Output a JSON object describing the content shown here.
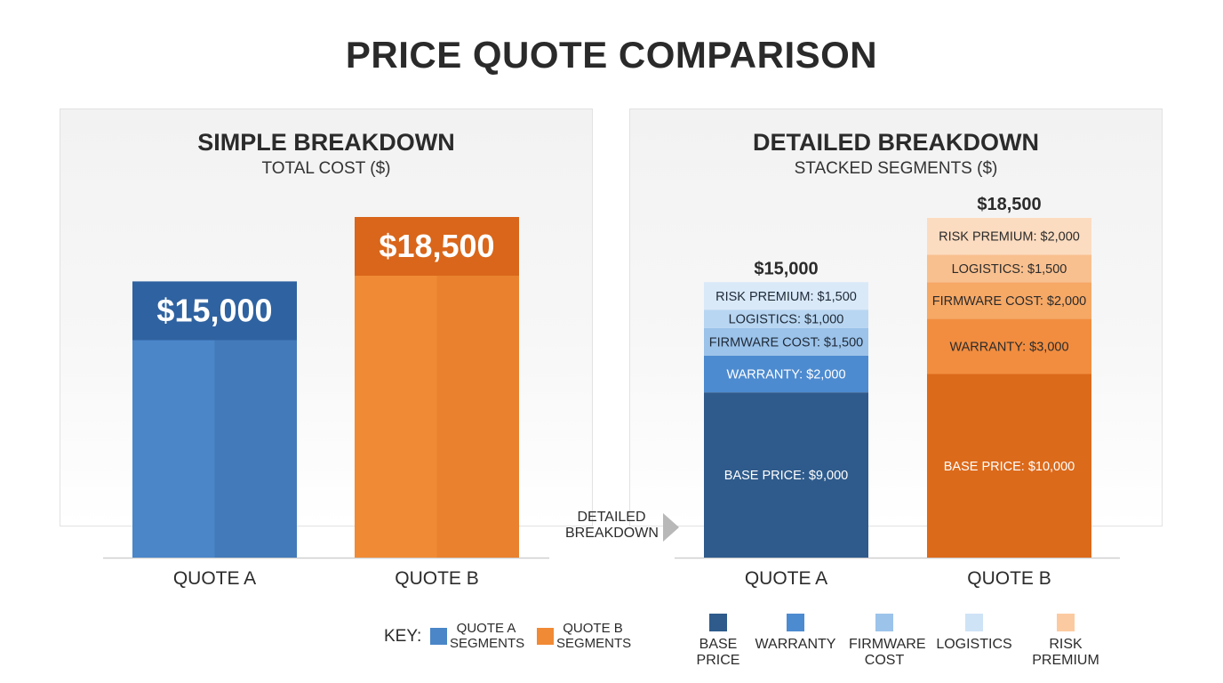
{
  "title": "PRICE QUOTE COMPARISON",
  "colors": {
    "quote_a": "#4a86c8",
    "quote_a_top": "#2f62a0",
    "quote_b": "#f08a35",
    "quote_b_top": "#d9661a",
    "base_a": "#2f5b8c",
    "base_b": "#dc6a1b"
  },
  "connector_label": "DETAILED BREAKDOWN",
  "key": {
    "label": "KEY:",
    "quote_a": "QUOTE A SEGMENTS",
    "quote_b": "QUOTE B SEGMENTS"
  },
  "segment_legend": [
    {
      "label": "BASE PRICE",
      "color": "#2f5b8c"
    },
    {
      "label": "WARRANTY",
      "color": "#4d8bd0"
    },
    {
      "label": "FIRMWARE COST",
      "color": "#9cc3ea"
    },
    {
      "label": "LOGISTICS",
      "color": "#cfe3f6"
    },
    {
      "label": "RISK PREMIUM",
      "color": "#fbcaa1"
    }
  ],
  "chart_data": [
    {
      "type": "bar",
      "title": "SIMPLE BREAKDOWN",
      "subtitle": "TOTAL COST ($)",
      "categories": [
        "QUOTE A",
        "QUOTE B"
      ],
      "values": [
        15000,
        18500
      ],
      "value_labels": [
        "$15,000",
        "$18,500"
      ],
      "ylim": [
        0,
        20000
      ],
      "grid": false
    },
    {
      "type": "bar",
      "stacked": true,
      "title": "DETAILED BREAKDOWN",
      "subtitle": "STACKED SEGMENTS ($)",
      "categories": [
        "QUOTE A",
        "QUOTE B"
      ],
      "totals": [
        15000,
        18500
      ],
      "total_labels": [
        "$15,000",
        "$18,500"
      ],
      "ylim": [
        0,
        20000
      ],
      "grid": false,
      "series": [
        {
          "name": "BASE PRICE",
          "values": [
            9000,
            10000
          ],
          "labels": [
            "BASE PRICE: $9,000",
            "BASE PRICE: $10,000"
          ],
          "colors": [
            "#2f5b8c",
            "#dc6a1b"
          ],
          "text_colors": [
            "#ffffff",
            "#ffffff"
          ]
        },
        {
          "name": "WARRANTY",
          "values": [
            2000,
            3000
          ],
          "labels": [
            "WARRANTY: $2,000",
            "WARRANTY: $3,000"
          ],
          "colors": [
            "#4d8bd0",
            "#f28d3f"
          ],
          "text_colors": [
            "#ffffff",
            "#2b2b2b"
          ]
        },
        {
          "name": "FIRMWARE COST",
          "values": [
            1500,
            2000
          ],
          "labels": [
            "FIRMWARE COST: $1,500",
            "FIRMWARE COST: $2,000"
          ],
          "colors": [
            "#9cc3ea",
            "#f6a865"
          ],
          "text_colors": [
            "#1f2a38",
            "#2b2b2b"
          ]
        },
        {
          "name": "LOGISTICS",
          "values": [
            1000,
            1500
          ],
          "labels": [
            "LOGISTICS: $1,000",
            "LOGISTICS: $1,500"
          ],
          "colors": [
            "#b8d6f1",
            "#f9c08f"
          ],
          "text_colors": [
            "#1f2a38",
            "#2b2b2b"
          ]
        },
        {
          "name": "RISK PREMIUM",
          "values": [
            1500,
            2000
          ],
          "labels": [
            "RISK PREMIUM: $1,500",
            "RISK PREMIUM: $2,000"
          ],
          "colors": [
            "#d9e9f8",
            "#fcdcc0"
          ],
          "text_colors": [
            "#1f2a38",
            "#2b2b2b"
          ]
        }
      ]
    }
  ]
}
